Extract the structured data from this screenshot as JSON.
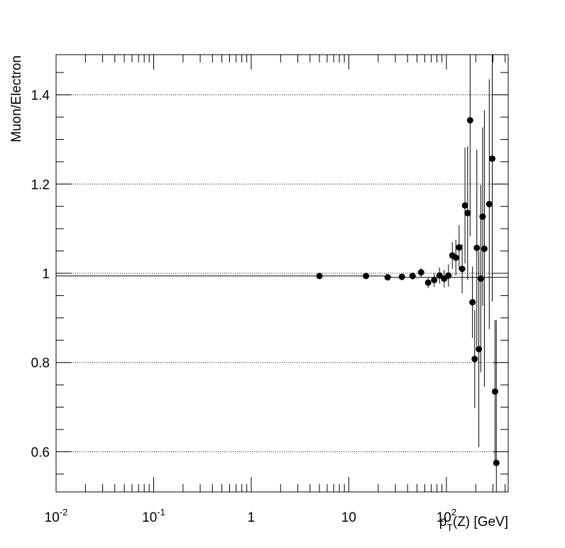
{
  "chart_data": {
    "type": "scatter",
    "title": "",
    "xlabel": {
      "p": "p",
      "sub": "T",
      "rest": "(Z) [GeV]"
    },
    "ylabel": "Muon/Electron",
    "x_scale": "log",
    "xlim": [
      0.01,
      430
    ],
    "ylim": [
      0.51,
      1.49
    ],
    "grid": {
      "x": false,
      "y": true
    },
    "x_ticks": [
      {
        "value": 0.01,
        "base": "10",
        "exp": "-2"
      },
      {
        "value": 0.1,
        "base": "10",
        "exp": "-1"
      },
      {
        "value": 1,
        "base": "1",
        "exp": ""
      },
      {
        "value": 10,
        "base": "10",
        "exp": ""
      },
      {
        "value": 100,
        "base": "10",
        "exp": "2"
      }
    ],
    "y_ticks": [
      {
        "value": 0.6,
        "label": "0.6"
      },
      {
        "value": 0.8,
        "label": "0.8"
      },
      {
        "value": 1.0,
        "label": "1"
      },
      {
        "value": 1.2,
        "label": "1.2"
      },
      {
        "value": 1.4,
        "label": "1.4"
      }
    ],
    "fit_line": {
      "x": [
        0.01,
        22,
        28,
        430
      ],
      "y": [
        0.994,
        0.994,
        0.991,
        0.991
      ]
    },
    "series": [
      {
        "points": [
          {
            "x": 5,
            "y": 0.994,
            "err": 0.004
          },
          {
            "x": 15,
            "y": 0.994,
            "err": 0.005
          },
          {
            "x": 25,
            "y": 0.991,
            "err": 0.006
          },
          {
            "x": 35,
            "y": 0.992,
            "err": 0.007
          },
          {
            "x": 45,
            "y": 0.994,
            "err": 0.008
          },
          {
            "x": 55,
            "y": 1.002,
            "err": 0.01
          },
          {
            "x": 65,
            "y": 0.979,
            "err": 0.012
          },
          {
            "x": 75,
            "y": 0.985,
            "err": 0.015
          },
          {
            "x": 85,
            "y": 0.995,
            "err": 0.018
          },
          {
            "x": 95,
            "y": 0.988,
            "err": 0.02
          },
          {
            "x": 105,
            "y": 0.995,
            "err": 0.025
          },
          {
            "x": 115,
            "y": 1.04,
            "err": 0.03
          },
          {
            "x": 125,
            "y": 1.035,
            "err": 0.04
          },
          {
            "x": 135,
            "y": 1.058,
            "err": 0.05
          },
          {
            "x": 145,
            "y": 1.01,
            "err": 0.055
          },
          {
            "x": 155,
            "y": 1.152,
            "err": 0.13
          },
          {
            "x": 165,
            "y": 1.135,
            "err": 0.15
          },
          {
            "x": 175,
            "y": 1.343,
            "err": 0.26
          },
          {
            "x": 185,
            "y": 0.935,
            "err": 0.08
          },
          {
            "x": 195,
            "y": 0.808,
            "err": 0.11
          },
          {
            "x": 205,
            "y": 1.057,
            "err": 0.22
          },
          {
            "x": 215,
            "y": 0.83,
            "err": 0.22
          },
          {
            "x": 225,
            "y": 0.988,
            "err": 0.21
          },
          {
            "x": 235,
            "y": 1.127,
            "err": 0.2
          },
          {
            "x": 245,
            "y": 1.055,
            "err": 0.31
          },
          {
            "x": 275,
            "y": 1.155,
            "err": 0.28
          },
          {
            "x": 295,
            "y": 1.257,
            "err": 0.32
          },
          {
            "x": 315,
            "y": 0.735,
            "err": 0.16
          },
          {
            "x": 325,
            "y": 0.575,
            "err": 0.32
          }
        ]
      }
    ]
  }
}
